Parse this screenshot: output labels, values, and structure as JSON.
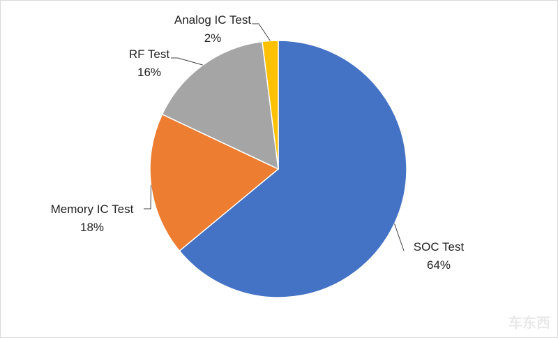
{
  "chart_data": {
    "type": "pie",
    "title": "",
    "slices": [
      {
        "label": "SOC Test",
        "value": 64,
        "value_label": "64%",
        "color": "#4472C4"
      },
      {
        "label": "Memory IC Test",
        "value": 18,
        "value_label": "18%",
        "color": "#ED7D31"
      },
      {
        "label": "RF Test",
        "value": 16,
        "value_label": "16%",
        "color": "#A5A5A5"
      },
      {
        "label": "Analog IC Test",
        "value": 2,
        "value_label": "2%",
        "color": "#FFC000"
      }
    ],
    "legend": "none",
    "data_labels": "outside-with-leader-lines"
  },
  "watermark": {
    "text": "车东西"
  }
}
